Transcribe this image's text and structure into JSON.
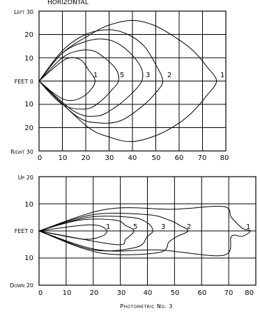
{
  "figure": {
    "top_cut_title": "HORIZONTAL",
    "caption": "Photometric No. 3",
    "top_panel": {
      "y_tick_labels": [
        "Left 30",
        "20",
        "10",
        "FEET 0",
        "10",
        "20",
        "Right 30"
      ],
      "x_tick_labels": [
        "0",
        "10",
        "20",
        "30",
        "40",
        "50",
        "60",
        "70",
        "80"
      ],
      "curve_labels": [
        "1",
        "5",
        "3",
        "2",
        "1"
      ]
    },
    "bottom_panel": {
      "y_tick_labels": [
        "Up 20",
        "10",
        "FEET 0",
        "10",
        "Down 20"
      ],
      "x_tick_labels": [
        "0",
        "10",
        "20",
        "30",
        "40",
        "50",
        "60",
        "70",
        "80"
      ],
      "curve_labels": [
        "1",
        "5",
        "3",
        "2",
        "1"
      ]
    }
  },
  "chart_data": [
    {
      "type": "line",
      "panel": "horizontal",
      "x_range": [
        0,
        80
      ],
      "y_range": [
        -30,
        30
      ],
      "grid": true,
      "series": [
        {
          "label": "1",
          "points": [
            [
              0,
              0
            ],
            [
              8,
              7
            ],
            [
              13,
              10
            ],
            [
              18,
              9
            ],
            [
              21,
              5
            ],
            [
              24,
              0
            ],
            [
              21,
              -5
            ],
            [
              16,
              -8
            ],
            [
              11,
              -8
            ],
            [
              6,
              -5
            ],
            [
              0,
              0
            ]
          ]
        },
        {
          "label": "5",
          "points": [
            [
              0,
              0
            ],
            [
              10,
              10
            ],
            [
              17,
              13
            ],
            [
              23,
              13
            ],
            [
              28,
              10
            ],
            [
              33,
              5
            ],
            [
              34,
              0
            ],
            [
              31,
              -4
            ],
            [
              26,
              -9
            ],
            [
              20,
              -12
            ],
            [
              10,
              -10
            ],
            [
              0,
              0
            ]
          ]
        },
        {
          "label": "3",
          "points": [
            [
              0,
              0
            ],
            [
              10,
              12
            ],
            [
              20,
              17
            ],
            [
              28,
              18
            ],
            [
              34,
              16
            ],
            [
              40,
              11
            ],
            [
              44,
              5
            ],
            [
              44,
              0
            ],
            [
              40,
              -5
            ],
            [
              33,
              -11
            ],
            [
              25,
              -15
            ],
            [
              15,
              -13
            ],
            [
              0,
              0
            ]
          ]
        },
        {
          "label": "2",
          "points": [
            [
              0,
              0
            ],
            [
              10,
              13
            ],
            [
              20,
              20
            ],
            [
              30,
              22
            ],
            [
              38,
              20
            ],
            [
              45,
              15
            ],
            [
              50,
              7
            ],
            [
              53,
              0
            ],
            [
              50,
              -5
            ],
            [
              44,
              -11
            ],
            [
              35,
              -17
            ],
            [
              26,
              -18
            ],
            [
              16,
              -15
            ],
            [
              0,
              0
            ]
          ]
        },
        {
          "label": "1",
          "points": [
            [
              0,
              0
            ],
            [
              10,
              12
            ],
            [
              22,
              20
            ],
            [
              30,
              24
            ],
            [
              40,
              26
            ],
            [
              49,
              24
            ],
            [
              58,
              19
            ],
            [
              66,
              13
            ],
            [
              72,
              6
            ],
            [
              76,
              0
            ],
            [
              72,
              -6
            ],
            [
              66,
              -13
            ],
            [
              60,
              -18
            ],
            [
              51,
              -23
            ],
            [
              40,
              -26
            ],
            [
              30,
              -24
            ],
            [
              20,
              -19
            ],
            [
              0,
              0
            ]
          ]
        }
      ]
    },
    {
      "type": "line",
      "panel": "vertical",
      "x_range": [
        0,
        80
      ],
      "y_range": [
        -20,
        20
      ],
      "grid": true,
      "series": [
        {
          "label": "1",
          "points": [
            [
              0,
              0
            ],
            [
              15,
              2
            ],
            [
              22,
              2
            ],
            [
              25,
              0
            ],
            [
              23,
              -2
            ],
            [
              16,
              -3
            ],
            [
              0,
              0
            ]
          ]
        },
        {
          "label": "5",
          "points": [
            [
              0,
              0
            ],
            [
              15,
              4
            ],
            [
              28,
              4
            ],
            [
              32,
              2
            ],
            [
              35,
              0
            ],
            [
              32,
              -3
            ],
            [
              28,
              -5
            ],
            [
              0,
              0
            ]
          ]
        },
        {
          "label": "3",
          "points": [
            [
              0,
              0
            ],
            [
              18,
              5
            ],
            [
              34,
              5
            ],
            [
              40,
              3
            ],
            [
              42,
              0
            ],
            [
              40,
              -2
            ],
            [
              36,
              -6
            ],
            [
              20,
              -7
            ],
            [
              0,
              0
            ]
          ]
        },
        {
          "label": "2",
          "points": [
            [
              0,
              0
            ],
            [
              20,
              6
            ],
            [
              40,
              6
            ],
            [
              48,
              4
            ],
            [
              52,
              2
            ],
            [
              55,
              0
            ],
            [
              51,
              -2
            ],
            [
              48,
              -4
            ],
            [
              44,
              -8
            ],
            [
              22,
              -8
            ],
            [
              0,
              0
            ]
          ]
        },
        {
          "label": "1",
          "points": [
            [
              0,
              0
            ],
            [
              25,
              8
            ],
            [
              50,
              8
            ],
            [
              68,
              9
            ],
            [
              71,
              5
            ],
            [
              75,
              1
            ],
            [
              78,
              0
            ],
            [
              75,
              -2
            ],
            [
              71,
              -2
            ],
            [
              68,
              -9
            ],
            [
              44,
              -7
            ],
            [
              22,
              -7
            ],
            [
              0,
              0
            ]
          ]
        }
      ]
    }
  ]
}
